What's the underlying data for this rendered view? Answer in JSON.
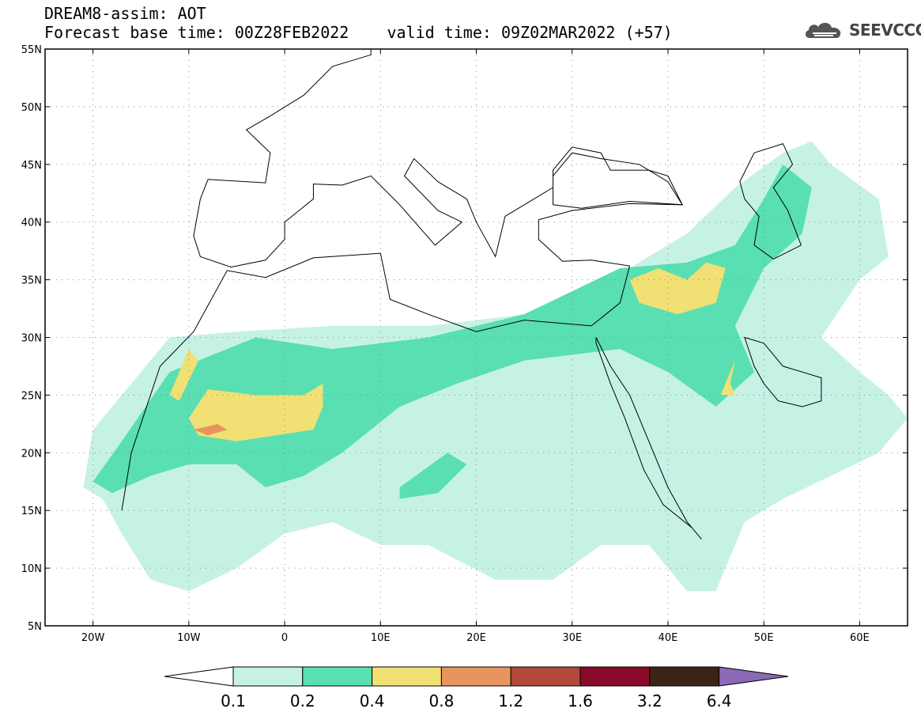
{
  "header": {
    "title": "DREAM8-assim: AOT",
    "subtitle": "Forecast base time: 00Z28FEB2022    valid time: 09Z02MAR2022 (+57)"
  },
  "logo": {
    "text": "SEEVCCC",
    "icon": "cloud-logo-icon"
  },
  "map": {
    "lon_range": [
      -25,
      65
    ],
    "lat_range": [
      5,
      55
    ],
    "lat_ticks": [
      {
        "value": 55,
        "label": "55N"
      },
      {
        "value": 50,
        "label": "50N"
      },
      {
        "value": 45,
        "label": "45N"
      },
      {
        "value": 40,
        "label": "40N"
      },
      {
        "value": 35,
        "label": "35N"
      },
      {
        "value": 30,
        "label": "30N"
      },
      {
        "value": 25,
        "label": "25N"
      },
      {
        "value": 20,
        "label": "20N"
      },
      {
        "value": 15,
        "label": "15N"
      },
      {
        "value": 10,
        "label": "10N"
      },
      {
        "value": 5,
        "label": "5N"
      }
    ],
    "lon_ticks": [
      {
        "value": -20,
        "label": "20W"
      },
      {
        "value": -10,
        "label": "10W"
      },
      {
        "value": 0,
        "label": "0"
      },
      {
        "value": 10,
        "label": "10E"
      },
      {
        "value": 20,
        "label": "20E"
      },
      {
        "value": 30,
        "label": "30E"
      },
      {
        "value": 40,
        "label": "40E"
      },
      {
        "value": 50,
        "label": "50E"
      },
      {
        "value": 60,
        "label": "60E"
      }
    ],
    "gridlines": "dotted",
    "regions": [
      {
        "level": 0.1,
        "color": "#c6f2e6",
        "pts": [
          [
            -20,
            22
          ],
          [
            -12,
            30
          ],
          [
            -5,
            30.5
          ],
          [
            5,
            31
          ],
          [
            15,
            31
          ],
          [
            25,
            32
          ],
          [
            35,
            35.5
          ],
          [
            42,
            39
          ],
          [
            47,
            43
          ],
          [
            52,
            46
          ],
          [
            55,
            47
          ],
          [
            57,
            45
          ],
          [
            62,
            42
          ],
          [
            63,
            37
          ],
          [
            60,
            35
          ],
          [
            56,
            30
          ],
          [
            60,
            27
          ],
          [
            63,
            25
          ],
          [
            65,
            23
          ],
          [
            62,
            20
          ],
          [
            57,
            18
          ],
          [
            52,
            16
          ],
          [
            48,
            14
          ],
          [
            45,
            8
          ],
          [
            42,
            8
          ],
          [
            38,
            12
          ],
          [
            33,
            12
          ],
          [
            28,
            9
          ],
          [
            22,
            9
          ],
          [
            15,
            12
          ],
          [
            10,
            12
          ],
          [
            5,
            14
          ],
          [
            0,
            13
          ],
          [
            -5,
            10
          ],
          [
            -10,
            8
          ],
          [
            -14,
            9
          ],
          [
            -17,
            13
          ],
          [
            -19,
            16
          ],
          [
            -21,
            17
          ]
        ]
      },
      {
        "level": 0.2,
        "color": "#59dfb2",
        "pts": [
          [
            -20,
            17.5
          ],
          [
            -17,
            21
          ],
          [
            -12,
            27
          ],
          [
            -9,
            28
          ],
          [
            -3,
            30
          ],
          [
            5,
            29
          ],
          [
            15,
            30
          ],
          [
            25,
            32
          ],
          [
            35,
            36
          ],
          [
            42,
            36.5
          ],
          [
            47,
            38
          ],
          [
            50,
            42
          ],
          [
            52,
            45
          ],
          [
            55,
            43
          ],
          [
            54,
            39
          ],
          [
            50,
            36
          ],
          [
            47,
            31
          ],
          [
            49,
            27
          ],
          [
            45,
            24
          ],
          [
            40,
            27
          ],
          [
            35,
            29
          ],
          [
            25,
            28
          ],
          [
            18,
            26
          ],
          [
            12,
            24
          ],
          [
            6,
            20
          ],
          [
            2,
            18
          ],
          [
            -2,
            17
          ],
          [
            -5,
            19
          ],
          [
            -10,
            19
          ],
          [
            -14,
            18
          ],
          [
            -18,
            16.5
          ]
        ]
      },
      {
        "level": 0.2,
        "color": "#59dfb2",
        "pts": [
          [
            12,
            17
          ],
          [
            17,
            20
          ],
          [
            19,
            19
          ],
          [
            16,
            16.5
          ],
          [
            12,
            16
          ]
        ]
      },
      {
        "level": 0.4,
        "color": "#f1e074",
        "pts": [
          [
            -10,
            23
          ],
          [
            -8,
            25.5
          ],
          [
            -3,
            25
          ],
          [
            2,
            25
          ],
          [
            4,
            26
          ],
          [
            4,
            24
          ],
          [
            3,
            22
          ],
          [
            -5,
            21
          ],
          [
            -9,
            21.5
          ]
        ]
      },
      {
        "level": 0.4,
        "color": "#f1e074",
        "pts": [
          [
            -12,
            25
          ],
          [
            -10,
            29
          ],
          [
            -9,
            28
          ],
          [
            -11,
            24.5
          ]
        ]
      },
      {
        "level": 0.4,
        "color": "#f1e074",
        "pts": [
          [
            36,
            35
          ],
          [
            39,
            36
          ],
          [
            42,
            35
          ],
          [
            44,
            36.5
          ],
          [
            46,
            36
          ],
          [
            45,
            33
          ],
          [
            41,
            32
          ],
          [
            37,
            33
          ]
        ]
      },
      {
        "level": 0.4,
        "color": "#f1e074",
        "pts": [
          [
            45.5,
            25
          ],
          [
            47,
            28
          ],
          [
            46.5,
            26
          ],
          [
            47,
            25
          ]
        ]
      },
      {
        "level": 0.8,
        "color": "#e9935f",
        "pts": [
          [
            -9.5,
            22
          ],
          [
            -7,
            22.5
          ],
          [
            -6,
            22
          ],
          [
            -8,
            21.5
          ]
        ]
      }
    ],
    "land_outline": [
      [
        -17,
        15
      ],
      [
        -16,
        20
      ],
      [
        -13,
        27.5
      ],
      [
        -9.5,
        30.5
      ],
      [
        -6,
        35.8
      ],
      [
        -2,
        35.2
      ],
      [
        3,
        36.9
      ],
      [
        10,
        37.3
      ],
      [
        11,
        33.3
      ],
      [
        15,
        32
      ],
      [
        20,
        30.5
      ],
      [
        25,
        31.5
      ],
      [
        32,
        31
      ],
      [
        35,
        33
      ],
      [
        36,
        36.2
      ],
      [
        32,
        36.7
      ],
      [
        29,
        36.6
      ],
      [
        26.5,
        38.5
      ],
      [
        26.5,
        40.2
      ],
      [
        30,
        41
      ],
      [
        36,
        41.6
      ],
      [
        41.5,
        41.5
      ],
      [
        40,
        44
      ],
      [
        38,
        44.5
      ],
      [
        34,
        44.5
      ],
      [
        33,
        46
      ],
      [
        30,
        46.5
      ],
      [
        28,
        44.5
      ],
      [
        28,
        43
      ],
      [
        23,
        40.5
      ],
      [
        22,
        37
      ],
      [
        20,
        40
      ],
      [
        19,
        42
      ],
      [
        16,
        43.5
      ],
      [
        13.5,
        45.5
      ],
      [
        12.5,
        44
      ],
      [
        16,
        41
      ],
      [
        18.5,
        40
      ],
      [
        15.7,
        38
      ],
      [
        12,
        41.5
      ],
      [
        9,
        44
      ],
      [
        6,
        43.2
      ],
      [
        3,
        43.3
      ],
      [
        3,
        42
      ],
      [
        0,
        40
      ],
      [
        0,
        38.5
      ],
      [
        -2,
        36.7
      ],
      [
        -5.6,
        36.1
      ],
      [
        -8.8,
        37
      ],
      [
        -9.5,
        38.8
      ],
      [
        -8.8,
        42
      ],
      [
        -8,
        43.7
      ],
      [
        -2,
        43.4
      ],
      [
        -1.5,
        46
      ],
      [
        -4,
        48
      ],
      [
        -1.5,
        49.2
      ],
      [
        2,
        51
      ],
      [
        5,
        53.5
      ],
      [
        9,
        54.5
      ],
      [
        9,
        55
      ]
    ],
    "caspian": [
      [
        49,
        46
      ],
      [
        52,
        46.8
      ],
      [
        53,
        45
      ],
      [
        51,
        43
      ],
      [
        52.5,
        41
      ],
      [
        53.9,
        38
      ],
      [
        51,
        36.8
      ],
      [
        49,
        38
      ],
      [
        49.5,
        40.5
      ],
      [
        48,
        42
      ],
      [
        47.5,
        43.5
      ]
    ],
    "black_sea": [
      [
        28,
        41.5
      ],
      [
        31,
        41.2
      ],
      [
        36,
        41.8
      ],
      [
        41.5,
        41.5
      ],
      [
        40,
        43.5
      ],
      [
        37,
        45
      ],
      [
        33,
        45.5
      ],
      [
        30,
        46
      ],
      [
        28,
        44
      ]
    ],
    "red_sea": [
      [
        32.5,
        30
      ],
      [
        34,
        27.5
      ],
      [
        36,
        25
      ],
      [
        38,
        21
      ],
      [
        40,
        17
      ],
      [
        42,
        14
      ],
      [
        43.5,
        12.5
      ],
      [
        42.5,
        13.5
      ],
      [
        39.5,
        15.5
      ],
      [
        37.5,
        18.5
      ],
      [
        35.5,
        23
      ],
      [
        34,
        26
      ],
      [
        32.5,
        29.5
      ]
    ],
    "persian_gulf": [
      [
        48,
        30
      ],
      [
        50,
        29.5
      ],
      [
        52,
        27.5
      ],
      [
        56,
        26.5
      ],
      [
        56,
        24.5
      ],
      [
        54,
        24
      ],
      [
        51.5,
        24.5
      ],
      [
        50,
        26
      ],
      [
        49,
        27.5
      ]
    ]
  },
  "colorbar": {
    "levels": [
      "0.1",
      "0.2",
      "0.4",
      "0.8",
      "1.2",
      "1.6",
      "3.2",
      "6.4"
    ],
    "colors": [
      "#c6f2e6",
      "#59dfb2",
      "#f1e074",
      "#e9935f",
      "#b14a3a",
      "#8a0a2c",
      "#3b2416",
      "#8a6ab5"
    ],
    "low_color": "#ffffff"
  }
}
